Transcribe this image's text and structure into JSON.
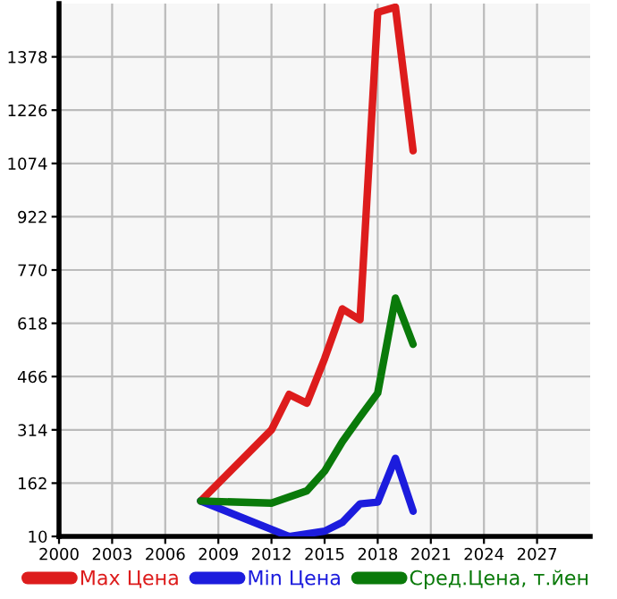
{
  "chart_data": {
    "type": "line",
    "x": [
      2008,
      2012,
      2013,
      2014,
      2015,
      2016,
      2017,
      2018,
      2019,
      2020
    ],
    "series": [
      {
        "name": "Max Цена",
        "color": "#dd1c1c",
        "values": [
          111,
          314,
          415,
          390,
          517,
          659,
          628,
          1505,
          1520,
          1110
        ]
      },
      {
        "name": "Min Цена",
        "color": "#1c1cdd",
        "values": [
          111,
          null,
          10,
          null,
          25,
          50,
          103,
          108,
          233,
          82
        ]
      },
      {
        "name": "Сред.Цена, т.йен",
        "color": "#0a7a0a",
        "values": [
          111,
          105,
          null,
          140,
          196,
          280,
          351,
          419,
          690,
          558
        ]
      }
    ],
    "xlim": [
      2000,
      2030
    ],
    "xticks": [
      2000,
      2003,
      2006,
      2009,
      2012,
      2015,
      2018,
      2021,
      2024,
      2027
    ],
    "ylim": [
      10,
      1530
    ],
    "yticks": [
      10,
      162,
      314,
      466,
      618,
      770,
      922,
      1074,
      1226,
      1378
    ],
    "grid": true,
    "legend": "bottom",
    "marker": "none",
    "line_style": "solid"
  }
}
